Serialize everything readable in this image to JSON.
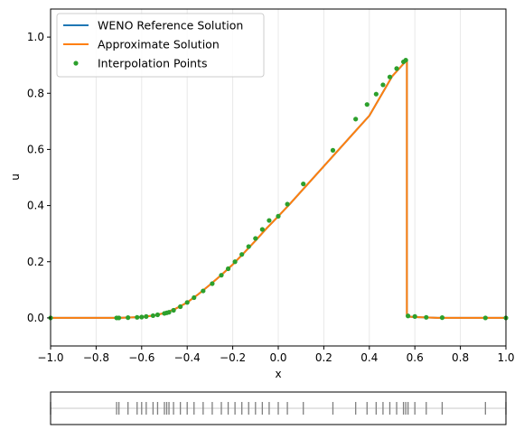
{
  "chart_data": [
    {
      "type": "line",
      "xlabel": "x",
      "ylabel": "u",
      "xlim": [
        -1.0,
        1.0
      ],
      "ylim": [
        -0.1,
        1.1
      ],
      "xticks": [
        "−1.0",
        "−0.8",
        "−0.6",
        "−0.4",
        "−0.2",
        "0.0",
        "0.2",
        "0.4",
        "0.6",
        "0.8",
        "1.0"
      ],
      "xtick_values": [
        -1.0,
        -0.8,
        -0.6,
        -0.4,
        -0.2,
        0.0,
        0.2,
        0.4,
        0.6,
        0.8,
        1.0
      ],
      "yticks": [
        "0.0",
        "0.2",
        "0.4",
        "0.6",
        "0.8",
        "1.0"
      ],
      "ytick_values": [
        0.0,
        0.2,
        0.4,
        0.6,
        0.8,
        1.0
      ],
      "grid": "x-only, light",
      "legend_position": "top-left",
      "colors": {
        "reference": "#1f77b4",
        "approx": "#ff7f0e",
        "points": "#2ca02c",
        "grid": "#e8e8e8"
      },
      "series": [
        {
          "name": "WENO Reference Solution",
          "style": "line",
          "x": [
            -1.0,
            -0.7,
            -0.6,
            -0.55,
            -0.5,
            -0.45,
            -0.4,
            -0.35,
            -0.3,
            -0.25,
            -0.2,
            -0.15,
            -0.1,
            -0.05,
            0.0,
            0.05,
            0.1,
            0.15,
            0.2,
            0.25,
            0.3,
            0.35,
            0.4,
            0.45,
            0.5,
            0.55,
            0.565,
            0.565,
            0.6,
            0.7,
            1.0
          ],
          "y": [
            0.0,
            0.0,
            0.003,
            0.008,
            0.017,
            0.033,
            0.055,
            0.085,
            0.118,
            0.153,
            0.19,
            0.232,
            0.275,
            0.32,
            0.362,
            0.405,
            0.45,
            0.495,
            0.54,
            0.585,
            0.63,
            0.675,
            0.72,
            0.79,
            0.86,
            0.905,
            0.918,
            0.005,
            0.003,
            0.0,
            0.0
          ]
        },
        {
          "name": "Approximate Solution",
          "style": "line",
          "x": [
            -1.0,
            -0.7,
            -0.6,
            -0.55,
            -0.5,
            -0.45,
            -0.4,
            -0.35,
            -0.3,
            -0.25,
            -0.2,
            -0.15,
            -0.1,
            -0.05,
            0.0,
            0.05,
            0.1,
            0.15,
            0.2,
            0.25,
            0.3,
            0.35,
            0.4,
            0.45,
            0.5,
            0.55,
            0.565,
            0.565,
            0.6,
            0.7,
            1.0
          ],
          "y": [
            0.0,
            0.0,
            0.003,
            0.008,
            0.017,
            0.033,
            0.055,
            0.085,
            0.118,
            0.153,
            0.19,
            0.232,
            0.275,
            0.32,
            0.362,
            0.405,
            0.45,
            0.495,
            0.54,
            0.585,
            0.63,
            0.675,
            0.72,
            0.79,
            0.86,
            0.905,
            0.918,
            0.005,
            0.003,
            0.0,
            0.0
          ]
        },
        {
          "name": "Interpolation Points",
          "style": "scatter",
          "x": [
            -1.0,
            -0.71,
            -0.7,
            -0.66,
            -0.62,
            -0.6,
            -0.58,
            -0.55,
            -0.53,
            -0.5,
            -0.49,
            -0.48,
            -0.46,
            -0.43,
            -0.4,
            -0.37,
            -0.33,
            -0.29,
            -0.25,
            -0.22,
            -0.19,
            -0.16,
            -0.13,
            -0.1,
            -0.07,
            -0.04,
            0.0,
            0.04,
            0.11,
            0.24,
            0.34,
            0.39,
            0.43,
            0.46,
            0.49,
            0.52,
            0.55,
            0.56,
            0.57,
            0.6,
            0.65,
            0.72,
            0.91,
            1.0
          ],
          "y": [
            0.0,
            0.0,
            0.0,
            0.001,
            0.002,
            0.003,
            0.005,
            0.008,
            0.011,
            0.016,
            0.018,
            0.02,
            0.027,
            0.04,
            0.055,
            0.072,
            0.096,
            0.122,
            0.152,
            0.175,
            0.2,
            0.226,
            0.254,
            0.283,
            0.315,
            0.347,
            0.362,
            0.405,
            0.477,
            0.597,
            0.708,
            0.76,
            0.797,
            0.83,
            0.858,
            0.888,
            0.912,
            0.918,
            0.007,
            0.005,
            0.002,
            0.001,
            0.0,
            0.0
          ]
        }
      ]
    },
    {
      "type": "scatter",
      "title": "",
      "xlim": [
        -1.0,
        1.0
      ],
      "marker": "vertical-tick",
      "colors": {
        "baseline": "#c8c8c8",
        "marks": "#7f7f7f"
      },
      "x": [
        -1.0,
        -0.71,
        -0.7,
        -0.66,
        -0.62,
        -0.6,
        -0.58,
        -0.55,
        -0.53,
        -0.5,
        -0.49,
        -0.48,
        -0.46,
        -0.43,
        -0.4,
        -0.37,
        -0.33,
        -0.29,
        -0.25,
        -0.22,
        -0.19,
        -0.16,
        -0.13,
        -0.1,
        -0.07,
        -0.04,
        0.0,
        0.04,
        0.11,
        0.24,
        0.34,
        0.39,
        0.43,
        0.46,
        0.49,
        0.52,
        0.55,
        0.56,
        0.57,
        0.6,
        0.65,
        0.72,
        0.91,
        1.0
      ]
    }
  ]
}
